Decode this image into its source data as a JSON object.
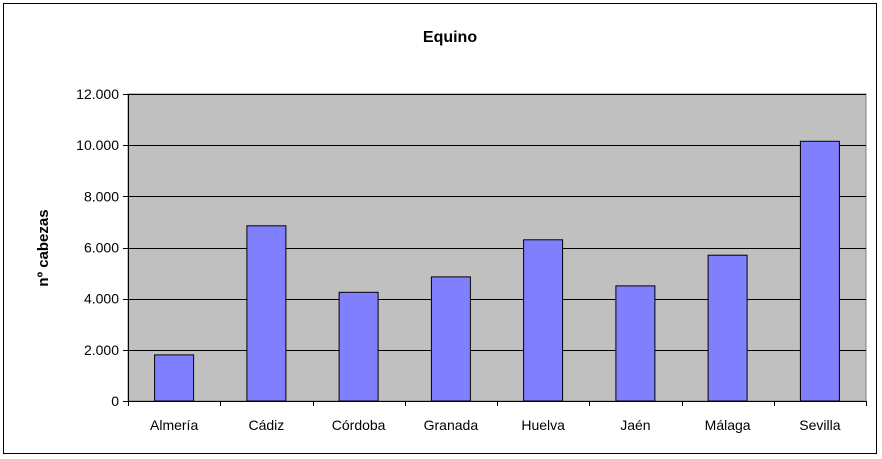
{
  "chart_data": {
    "type": "bar",
    "title": "Equino",
    "xlabel": "",
    "ylabel": "nº cabezas",
    "categories": [
      "Almería",
      "Cádiz",
      "Córdoba",
      "Granada",
      "Huelva",
      "Jaén",
      "Málaga",
      "Sevilla"
    ],
    "values": [
      1800,
      6850,
      4250,
      4850,
      6300,
      4500,
      5700,
      10150
    ],
    "ylim": [
      0,
      12000
    ],
    "yticks": [
      0,
      2000,
      4000,
      6000,
      8000,
      10000,
      12000
    ],
    "ytick_labels": [
      "0",
      "2.000",
      "4.000",
      "6.000",
      "8.000",
      "10.000",
      "12.000"
    ],
    "grid": true,
    "legend": "none",
    "colors": {
      "bar_fill": "#8080ff",
      "bar_stroke": "#000000",
      "plot_background": "#c0c0c0",
      "gridline": "#000000"
    }
  }
}
